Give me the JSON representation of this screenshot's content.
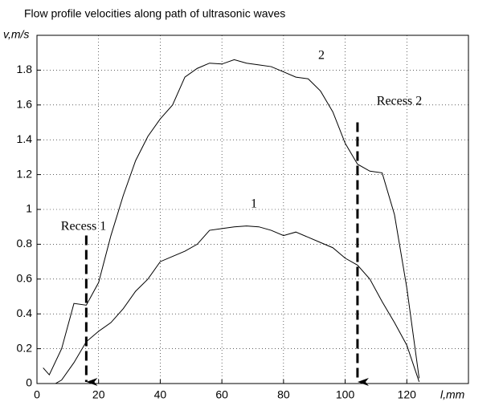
{
  "chart_data": {
    "type": "line",
    "title": "Flow profile velocities along path of ultrasonic waves",
    "ylabel": "v,m/s",
    "xlabel": "l,mm",
    "xlim": [
      0,
      140
    ],
    "xticks": [
      0,
      20,
      40,
      60,
      80,
      100,
      120
    ],
    "ylim": [
      0,
      2
    ],
    "yticks": [
      0,
      0.2,
      0.4,
      0.6,
      0.8,
      1,
      1.2,
      1.4,
      1.6,
      1.8
    ],
    "grid": true,
    "series": [
      {
        "name": "1",
        "color": "#000000",
        "x": [
          2,
          6,
          8,
          12,
          16,
          20,
          24,
          28,
          32,
          36,
          40,
          44,
          48,
          52,
          56,
          60,
          64,
          68,
          72,
          76,
          80,
          84,
          88,
          92,
          96,
          100,
          104,
          108,
          112,
          116,
          120,
          124
        ],
        "values": [
          0,
          0,
          0.02,
          0.12,
          0.24,
          0.3,
          0.35,
          0.43,
          0.53,
          0.6,
          0.7,
          0.73,
          0.76,
          0.8,
          0.88,
          0.89,
          0.9,
          0.905,
          0.9,
          0.88,
          0.85,
          0.87,
          0.84,
          0.81,
          0.78,
          0.72,
          0.68,
          0.6,
          0.47,
          0.35,
          0.22,
          0.01
        ]
      },
      {
        "name": "2",
        "color": "#000000",
        "x": [
          2,
          4,
          8,
          12,
          16,
          20,
          24,
          28,
          32,
          36,
          40,
          44,
          48,
          52,
          56,
          60,
          64,
          68,
          72,
          76,
          80,
          84,
          88,
          92,
          96,
          100,
          104,
          108,
          112,
          116,
          120,
          124
        ],
        "values": [
          0.09,
          0.05,
          0.2,
          0.46,
          0.45,
          0.58,
          0.85,
          1.08,
          1.28,
          1.42,
          1.52,
          1.6,
          1.76,
          1.81,
          1.84,
          1.835,
          1.86,
          1.84,
          1.83,
          1.82,
          1.79,
          1.76,
          1.75,
          1.68,
          1.56,
          1.38,
          1.26,
          1.22,
          1.21,
          0.97,
          0.55,
          0.03
        ]
      }
    ],
    "annotations": [
      {
        "text": "Recess 1",
        "x": 16,
        "y": 0.85
      },
      {
        "text": "Recess 2",
        "x": 104,
        "y": 1.5
      }
    ]
  }
}
